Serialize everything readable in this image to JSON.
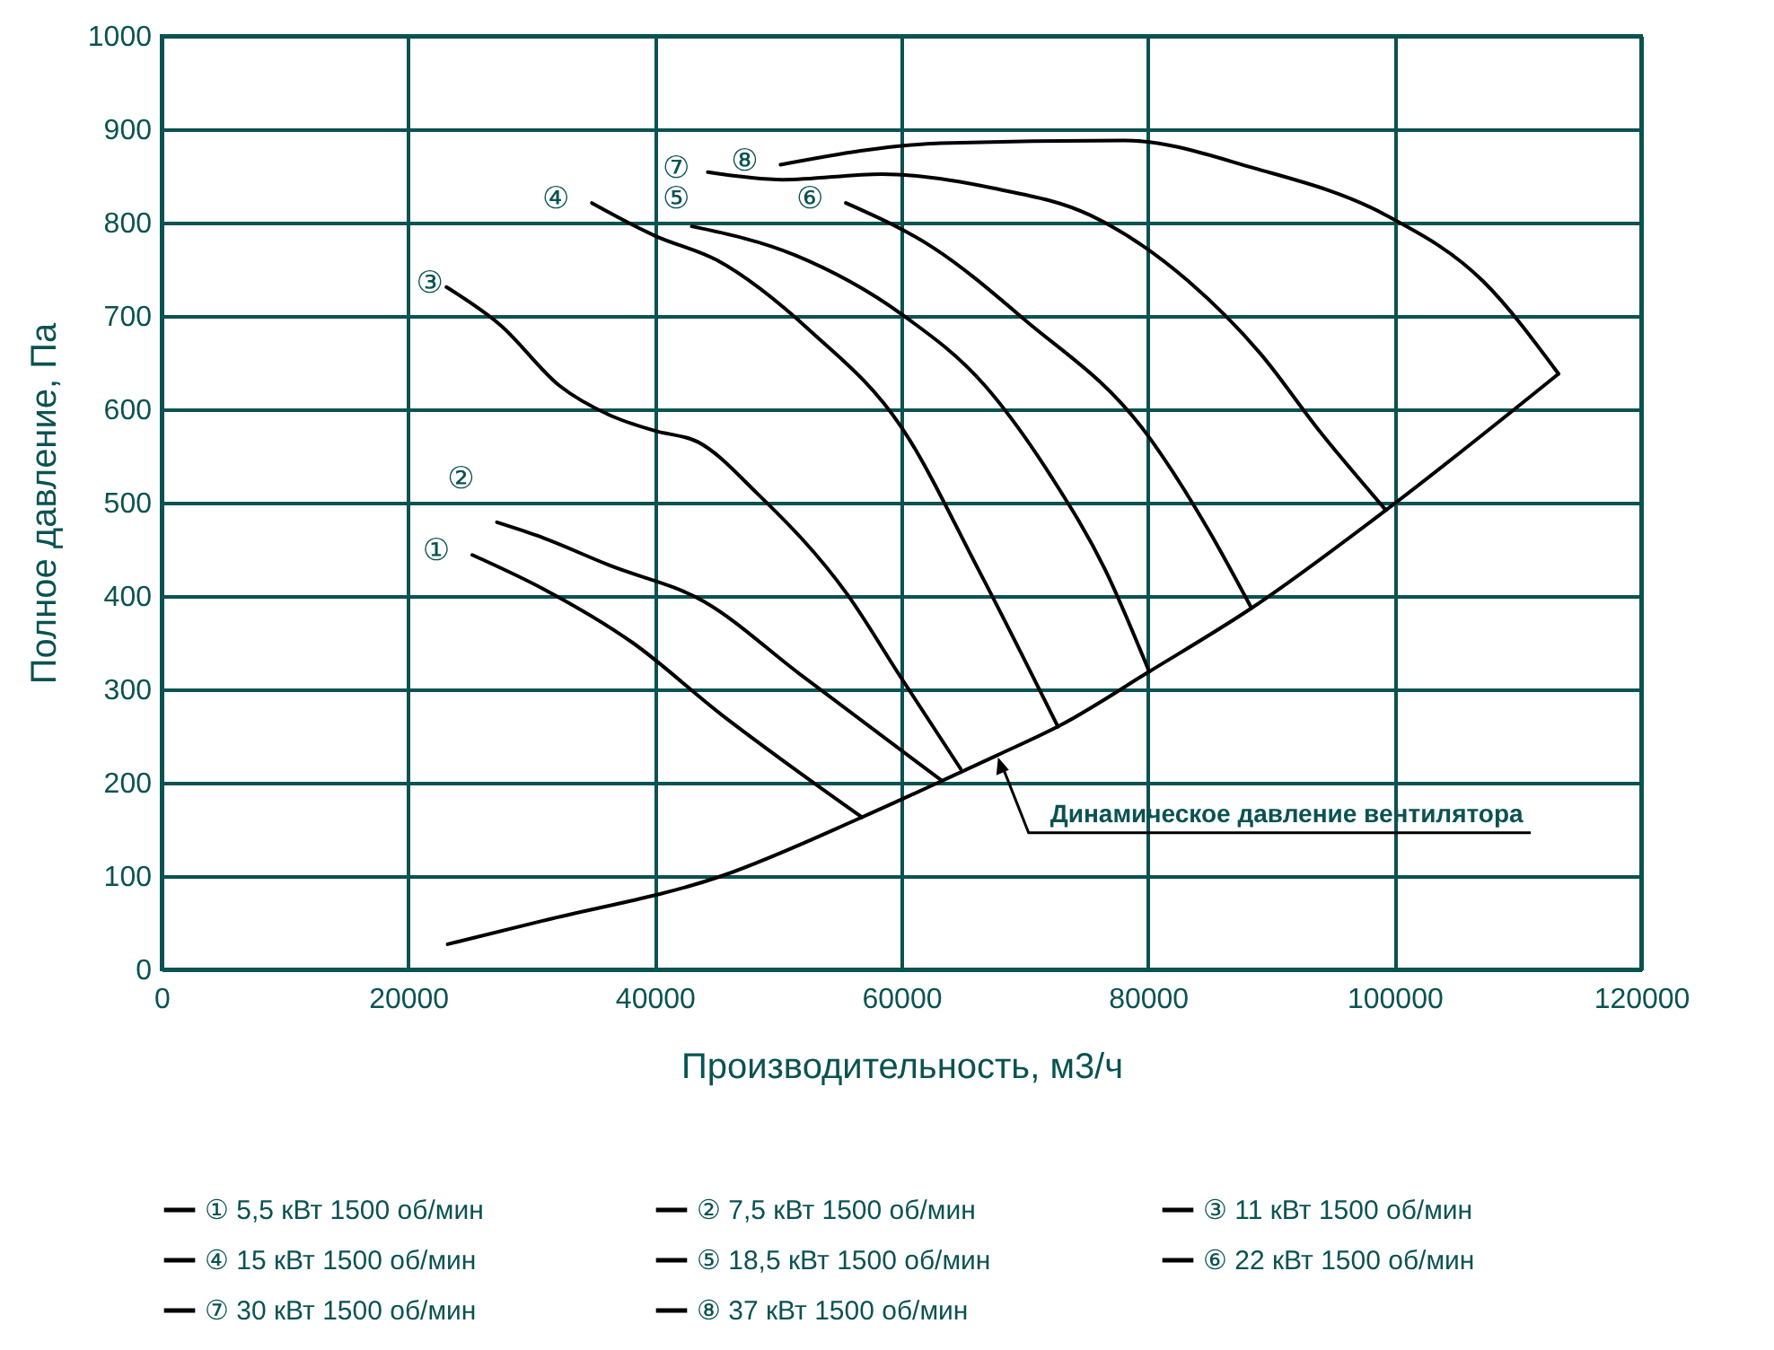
{
  "chart_data": {
    "type": "line",
    "xlabel": "Производительность, м3/ч",
    "ylabel": "Полное давление, Па",
    "xlim": [
      0,
      120000
    ],
    "xticks": [
      0,
      20000,
      40000,
      60000,
      80000,
      100000,
      120000
    ],
    "ylim": [
      0,
      1000
    ],
    "yticks": [
      0,
      100,
      200,
      300,
      400,
      500,
      600,
      700,
      800,
      900,
      1000
    ],
    "grid": true,
    "legend": "bottom",
    "line_style": "solid",
    "series": [
      {
        "name": "① 5,5 кВт 1500 об/мин",
        "color": "#000000",
        "x": [
          25200,
          30900,
          38200,
          45400,
          51300,
          56800
        ],
        "values": [
          444,
          408,
          350,
          273,
          215,
          163
        ]
      },
      {
        "name": "② 7,5 кВт 1500 об/мин",
        "color": "#000000",
        "x": [
          27200,
          30400,
          36300,
          44000,
          51700,
          63300
        ],
        "values": [
          479,
          465,
          433,
          394,
          317,
          202
        ]
      },
      {
        "name": "③ 11 кВт 1500 об/мин",
        "color": "#000000",
        "x": [
          23100,
          27500,
          32300,
          36300,
          40000,
          43500,
          48300,
          55600,
          60000,
          64800
        ],
        "values": [
          731,
          690,
          625,
          594,
          577,
          565,
          510,
          402,
          312,
          215
        ]
      },
      {
        "name": "④ 15 кВт 1500 об/мин",
        "color": "#000000",
        "x": [
          34900,
          40000,
          45000,
          52700,
          60000,
          66300,
          72700
        ],
        "values": [
          821,
          786,
          760,
          683,
          581,
          427,
          260
        ]
      },
      {
        "name": "⑤ 18,5 кВт 1500 об/мин",
        "color": "#000000",
        "x": [
          43000,
          51400,
          60000,
          66800,
          72200,
          76500,
          80100
        ],
        "values": [
          796,
          765,
          702,
          625,
          527,
          429,
          319
        ]
      },
      {
        "name": "⑥ 22 кВт 1500 об/мин",
        "color": "#000000",
        "x": [
          55500,
          62600,
          70000,
          79700,
          84900,
          88400
        ],
        "values": [
          821,
          773,
          696,
          577,
          471,
          387
        ]
      },
      {
        "name": "⑦ 30 кВт 1500 об/мин",
        "color": "#000000",
        "x": [
          44300,
          50400,
          58400,
          67400,
          75300,
          83300,
          89100,
          93900,
          99300
        ],
        "values": [
          854,
          846,
          852,
          837,
          808,
          737,
          660,
          577,
          492
        ]
      },
      {
        "name": "⑧ 37 кВт 1500 об/мин",
        "color": "#000000",
        "x": [
          50200,
          63200,
          78100,
          88700,
          99300,
          107200,
          113300
        ],
        "values": [
          862,
          885,
          888,
          858,
          808,
          737,
          638
        ]
      },
      {
        "color": "#000000",
        "x": [
          23200,
          30900,
          45400,
          56800,
          63300,
          67700,
          73100,
          80100,
          88400,
          99300,
          113300
        ],
        "values": [
          27,
          52,
          100,
          163,
          202,
          229,
          263,
          319,
          387,
          492,
          638
        ]
      }
    ],
    "annotations": [
      {
        "text": "Динамическое давление вентилятора",
        "x": 67700,
        "y": 229
      },
      {
        "text": "①",
        "x": 25200,
        "y": 444
      },
      {
        "text": "②",
        "x": 27200,
        "y": 479
      },
      {
        "text": "③",
        "x": 23100,
        "y": 731
      },
      {
        "text": "④",
        "x": 34900,
        "y": 821
      },
      {
        "text": "⑤",
        "x": 43000,
        "y": 796
      },
      {
        "text": "⑥",
        "x": 55500,
        "y": 821
      },
      {
        "text": "⑦",
        "x": 44300,
        "y": 854
      },
      {
        "text": "⑧",
        "x": 50200,
        "y": 862
      }
    ]
  }
}
